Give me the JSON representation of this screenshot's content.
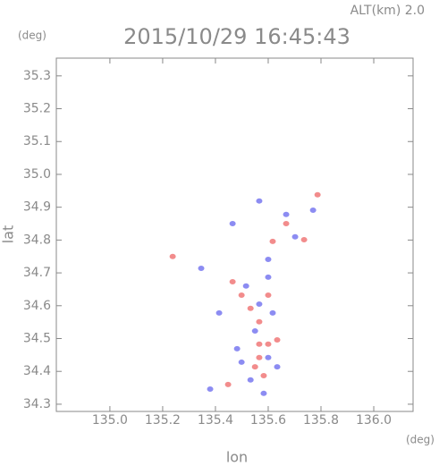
{
  "chart_data": {
    "type": "scatter",
    "title": "2015/10/29 16:45:43",
    "subtitle": "ALT(km) 2.0",
    "ylabel": "lat",
    "xlabel": "lon",
    "yunit": "(deg)",
    "xunit": "(deg)",
    "xlim": [
      134.797,
      136.149
    ],
    "ylim": [
      34.278,
      35.354
    ],
    "xticks": [
      {
        "value": 135,
        "label": "135.0"
      },
      135.2,
      135.4,
      135.6,
      135.8,
      {
        "value": 136,
        "label": "136.0"
      }
    ],
    "yticks": [
      34.3,
      34.4,
      34.5,
      34.6,
      34.7,
      34.8,
      34.9,
      {
        "value": 35,
        "label": "35.0"
      },
      35.1,
      35.2,
      35.3
    ],
    "grid": false,
    "series": [
      {
        "color": "#f07878",
        "x": [
          135.238,
          135.787,
          135.736,
          135.566,
          135.6,
          135.55,
          135.634,
          135.583,
          135.533,
          135.6,
          135.499,
          135.566,
          135.668,
          135.448,
          135.566,
          135.617,
          135.465
        ],
        "values": [
          34.75,
          34.938,
          34.801,
          34.442,
          34.483,
          34.414,
          34.496,
          34.387,
          34.592,
          34.632,
          34.632,
          34.551,
          34.85,
          34.36,
          34.483,
          34.796,
          34.673
        ]
      },
      {
        "color": "#7878f0",
        "x": [
          135.346,
          135.77,
          135.566,
          135.668,
          135.465,
          135.6,
          135.516,
          135.566,
          135.55,
          135.6,
          135.499,
          135.634,
          135.38,
          135.533,
          135.482,
          135.583,
          135.414,
          135.617,
          135.702,
          135.6
        ],
        "values": [
          34.714,
          34.891,
          34.919,
          34.878,
          34.85,
          34.687,
          34.66,
          34.605,
          34.523,
          34.442,
          34.428,
          34.414,
          34.346,
          34.374,
          34.469,
          34.333,
          34.578,
          34.578,
          34.81,
          34.741
        ]
      }
    ]
  }
}
